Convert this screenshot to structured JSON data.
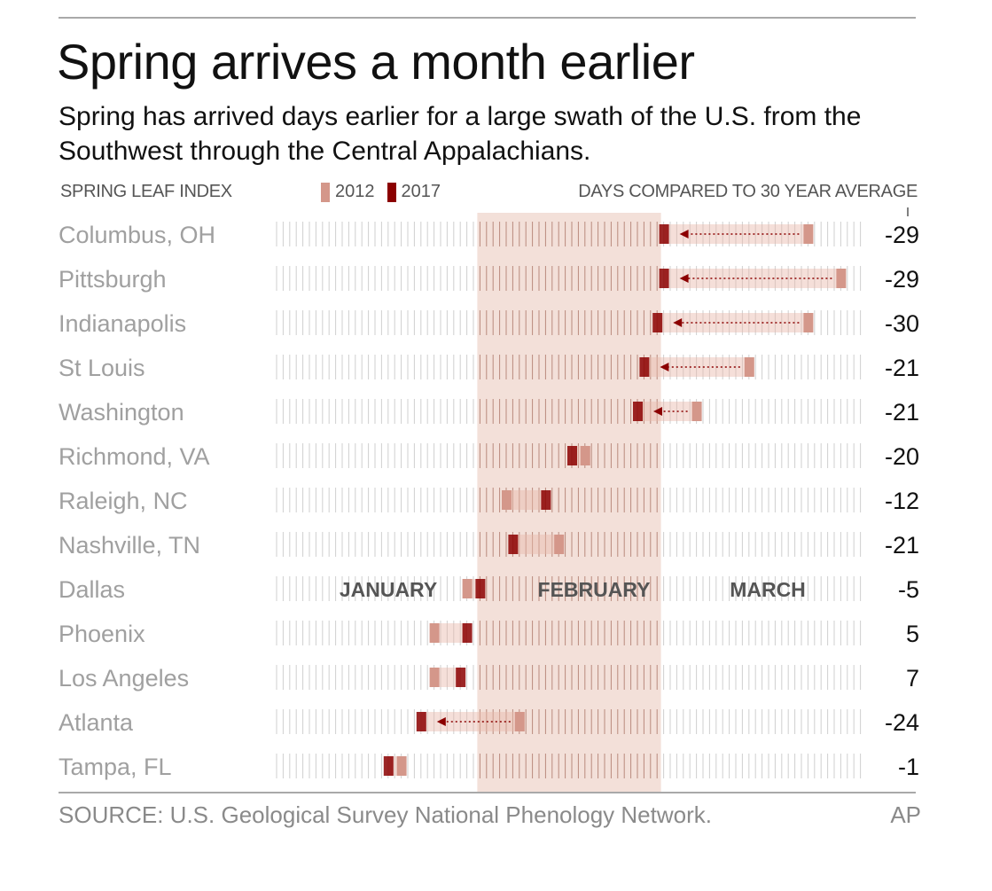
{
  "title": "Spring arrives a month earlier",
  "subtitle": "Spring has arrived days earlier for a large swath of the U.S. from the Southwest through the Central Appalachians.",
  "header_left": "SPRING LEAF INDEX",
  "header_right": "DAYS COMPARED TO 30 YEAR AVERAGE",
  "legend": [
    {
      "label": "2012",
      "color": "#d4978a"
    },
    {
      "label": "2017",
      "color": "#8b0000"
    }
  ],
  "source": "SOURCE: U.S. Geological Survey National Phenology Network.",
  "credit": "AP",
  "chart_data": {
    "type": "timeline",
    "months": [
      {
        "label": "JANUARY",
        "start_day": 1,
        "end_day": 31
      },
      {
        "label": "FEBRUARY",
        "start_day": 32,
        "end_day": 59
      },
      {
        "label": "MARCH",
        "start_day": 60,
        "end_day": 90
      }
    ],
    "x_unit": "day of year",
    "xlim": [
      1,
      90
    ],
    "highlight_month": "FEBRUARY",
    "series": [
      {
        "name": "2012",
        "color": "#d4978a"
      },
      {
        "name": "2017",
        "color": "#8b0000"
      }
    ],
    "rows": [
      {
        "city": "Columbus, OH",
        "day_2012": 82,
        "day_2017": 60,
        "anomaly": "-29"
      },
      {
        "city": "Pittsburgh",
        "day_2012": 87,
        "day_2017": 60,
        "anomaly": "-29"
      },
      {
        "city": "Indianapolis",
        "day_2012": 82,
        "day_2017": 59,
        "anomaly": "-30"
      },
      {
        "city": "St Louis",
        "day_2012": 73,
        "day_2017": 57,
        "anomaly": "-21"
      },
      {
        "city": "Washington",
        "day_2012": 65,
        "day_2017": 56,
        "anomaly": "-21"
      },
      {
        "city": "Richmond, VA",
        "day_2012": 48,
        "day_2017": 46,
        "anomaly": "-20"
      },
      {
        "city": "Raleigh, NC",
        "day_2012": 36,
        "day_2017": 42,
        "anomaly": "-12"
      },
      {
        "city": "Nashville, TN",
        "day_2012": 44,
        "day_2017": 37,
        "anomaly": "-21"
      },
      {
        "city": "Dallas",
        "day_2012": 30,
        "day_2017": 32,
        "anomaly": "-5"
      },
      {
        "city": "Phoenix",
        "day_2012": 25,
        "day_2017": 30,
        "anomaly": "5"
      },
      {
        "city": "Los Angeles",
        "day_2012": 25,
        "day_2017": 29,
        "anomaly": "7"
      },
      {
        "city": "Atlanta",
        "day_2012": 38,
        "day_2017": 23,
        "anomaly": "-24"
      },
      {
        "city": "Tampa, FL",
        "day_2012": 20,
        "day_2017": 18,
        "anomaly": "-1"
      }
    ]
  }
}
